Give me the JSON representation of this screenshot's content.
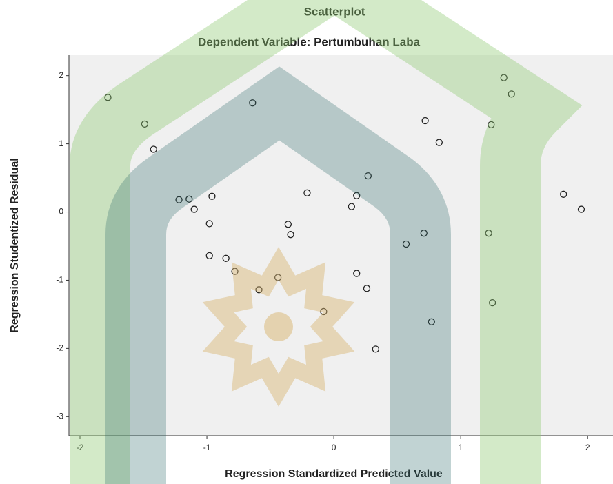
{
  "chart_data": {
    "type": "scatter",
    "title": "Scatterplot",
    "subtitle": "Dependent Variable: Pertumbuhan Laba",
    "x_label": "Regression Standardized Predicted Value",
    "y_label": "Regression Studentized Residual",
    "x": [
      -1.78,
      -1.49,
      -1.42,
      -1.22,
      -1.14,
      -1.1,
      -0.96,
      -0.98,
      -0.98,
      -0.85,
      -0.78,
      -0.59,
      -0.64,
      -0.44,
      -0.36,
      -0.34,
      -0.21,
      -0.08,
      0.14,
      0.18,
      0.27,
      0.18,
      0.26,
      0.33,
      0.57,
      0.71,
      0.72,
      0.83,
      0.77,
      1.22,
      1.25,
      1.24,
      1.34,
      1.4,
      1.81,
      1.95
    ],
    "y": [
      1.68,
      1.29,
      0.92,
      0.18,
      0.19,
      0.04,
      0.23,
      -0.17,
      -0.64,
      -0.68,
      -0.87,
      -1.14,
      1.6,
      -0.96,
      -0.18,
      -0.33,
      0.28,
      -1.46,
      0.08,
      0.24,
      0.53,
      -0.9,
      -1.12,
      -2.01,
      -0.47,
      -0.31,
      1.34,
      1.02,
      -1.61,
      -0.31,
      -1.33,
      1.28,
      1.97,
      1.73,
      0.26,
      0.04
    ],
    "xlim": [
      -2.087,
      2.2
    ],
    "ylim": [
      -3.28,
      2.3
    ],
    "xticks": [
      -2,
      -1,
      0,
      1,
      2
    ],
    "yticks": [
      -3,
      -2,
      -1,
      0,
      1,
      2
    ],
    "plot_background": "#f0f0f0",
    "marker_color": "#222222"
  }
}
